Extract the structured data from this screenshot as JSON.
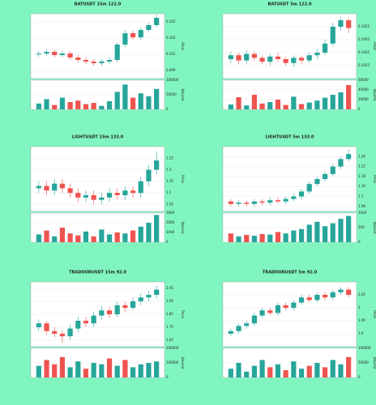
{
  "chart_data": [
    {
      "type": "candlestick",
      "title": "BATUSDT 15m 122.0",
      "ylabel": "Price",
      "vlabel": "Volume",
      "grid": true,
      "up_color": "#26a69a",
      "down_color": "#ef5350",
      "open": [
        0.101,
        0.1011,
        0.1013,
        0.1009,
        0.1011,
        0.1006,
        0.1003,
        0.1001,
        0.0999,
        0.1001,
        0.1003,
        0.1022,
        0.1036,
        0.1031,
        0.104,
        0.1046
      ],
      "close": [
        0.1011,
        0.1013,
        0.1009,
        0.1011,
        0.1006,
        0.1003,
        0.1001,
        0.0999,
        0.1001,
        0.1003,
        0.1022,
        0.1036,
        0.1031,
        0.104,
        0.1046,
        0.1055
      ],
      "high": [
        0.1014,
        0.1016,
        0.1016,
        0.1014,
        0.1014,
        0.1009,
        0.1006,
        0.1004,
        0.1004,
        0.1006,
        0.1025,
        0.104,
        0.1039,
        0.1043,
        0.1049,
        0.1059
      ],
      "low": [
        0.1007,
        0.1008,
        0.1006,
        0.1006,
        0.1003,
        0.1,
        0.0998,
        0.0996,
        0.0996,
        0.0998,
        0.1,
        0.1019,
        0.1028,
        0.1028,
        0.1037,
        0.1043
      ],
      "ylim": [
        0.098,
        0.106
      ],
      "yticks": [
        0.099,
        0.101,
        0.103,
        0.105
      ],
      "volume": [
        20000,
        35000,
        15000,
        40000,
        25000,
        30000,
        18000,
        22000,
        12000,
        28000,
        60000,
        85000,
        40000,
        55000,
        45000,
        70000
      ],
      "vlim": [
        0,
        100000
      ],
      "vticks": [
        0,
        50000,
        100000
      ]
    },
    {
      "type": "candlestick",
      "title": "BATUSDT 5m 122.0",
      "ylabel": "Price",
      "vlabel": "Volume",
      "grid": true,
      "up_color": "#26a69a",
      "down_color": "#ef5350",
      "open": [
        0.103,
        0.1033,
        0.1029,
        0.1034,
        0.1031,
        0.1028,
        0.1032,
        0.103,
        0.1027,
        0.1031,
        0.1029,
        0.1033,
        0.1035,
        0.1042,
        0.1055,
        0.106
      ],
      "close": [
        0.1033,
        0.1029,
        0.1034,
        0.1031,
        0.1028,
        0.1032,
        0.103,
        0.1027,
        0.1031,
        0.1029,
        0.1033,
        0.1035,
        0.1042,
        0.1055,
        0.106,
        0.1054
      ],
      "high": [
        0.1036,
        0.1035,
        0.1037,
        0.1036,
        0.1033,
        0.1034,
        0.1035,
        0.1032,
        0.1033,
        0.1033,
        0.1035,
        0.1038,
        0.1045,
        0.1058,
        0.1063,
        0.1062
      ],
      "low": [
        0.1027,
        0.1026,
        0.1026,
        0.1029,
        0.1026,
        0.1025,
        0.1028,
        0.1025,
        0.1024,
        0.1026,
        0.1027,
        0.103,
        0.1033,
        0.104,
        0.1052,
        0.105
      ],
      "ylim": [
        0.1015,
        0.1065
      ],
      "yticks": [
        0.1025,
        0.1035,
        0.1045,
        0.1055
      ],
      "volume": [
        10000,
        25000,
        8000,
        30000,
        12000,
        15000,
        20000,
        9000,
        26000,
        11000,
        14000,
        18000,
        24000,
        30000,
        35000,
        50000
      ],
      "vlim": [
        0,
        60000
      ],
      "vticks": [
        0,
        20000,
        40000,
        60000
      ]
    },
    {
      "type": "candlestick",
      "title": "LIGHTUSDT 15m 133.0",
      "ylabel": "Price",
      "vlabel": "Volume",
      "grid": true,
      "up_color": "#26a69a",
      "down_color": "#ef5350",
      "open": [
        1.12,
        1.13,
        1.11,
        1.14,
        1.12,
        1.1,
        1.08,
        1.09,
        1.07,
        1.08,
        1.1,
        1.09,
        1.11,
        1.1,
        1.15,
        1.2
      ],
      "close": [
        1.13,
        1.11,
        1.14,
        1.12,
        1.1,
        1.08,
        1.09,
        1.07,
        1.08,
        1.1,
        1.09,
        1.11,
        1.1,
        1.15,
        1.2,
        1.24
      ],
      "high": [
        1.15,
        1.15,
        1.16,
        1.16,
        1.14,
        1.12,
        1.11,
        1.11,
        1.1,
        1.12,
        1.12,
        1.13,
        1.13,
        1.17,
        1.22,
        1.28
      ],
      "low": [
        1.1,
        1.09,
        1.09,
        1.1,
        1.08,
        1.06,
        1.06,
        1.05,
        1.05,
        1.06,
        1.07,
        1.07,
        1.08,
        1.08,
        1.13,
        1.18
      ],
      "ylim": [
        1.02,
        1.3
      ],
      "yticks": [
        1.05,
        1.1,
        1.15,
        1.2,
        1.25
      ],
      "volume": [
        800,
        1200,
        600,
        1500,
        900,
        700,
        1100,
        600,
        1300,
        800,
        1000,
        900,
        1200,
        1600,
        2000,
        2800
      ],
      "vlim": [
        0,
        3000
      ],
      "vticks": [
        0,
        1000,
        2000,
        3000
      ]
    },
    {
      "type": "candlestick",
      "title": "LIGHTUSDT 5m 133.0",
      "ylabel": "Price",
      "vlabel": "Volume",
      "grid": true,
      "up_color": "#26a69a",
      "down_color": "#ef5350",
      "open": [
        1.08,
        1.07,
        1.075,
        1.07,
        1.08,
        1.075,
        1.085,
        1.08,
        1.09,
        1.1,
        1.12,
        1.15,
        1.17,
        1.19,
        1.22,
        1.25
      ],
      "close": [
        1.07,
        1.075,
        1.07,
        1.08,
        1.075,
        1.085,
        1.08,
        1.09,
        1.1,
        1.12,
        1.15,
        1.17,
        1.19,
        1.22,
        1.25,
        1.27
      ],
      "high": [
        1.09,
        1.085,
        1.085,
        1.09,
        1.09,
        1.095,
        1.095,
        1.1,
        1.11,
        1.13,
        1.16,
        1.18,
        1.2,
        1.23,
        1.26,
        1.29
      ],
      "low": [
        1.06,
        1.06,
        1.06,
        1.06,
        1.065,
        1.065,
        1.07,
        1.07,
        1.08,
        1.09,
        1.11,
        1.14,
        1.16,
        1.18,
        1.21,
        1.24
      ],
      "ylim": [
        1.04,
        1.3
      ],
      "yticks": [
        1.06,
        1.1,
        1.14,
        1.18,
        1.22,
        1.26
      ],
      "volume": [
        300,
        200,
        250,
        220,
        280,
        260,
        350,
        300,
        400,
        450,
        600,
        700,
        550,
        650,
        800,
        900
      ],
      "vlim": [
        0,
        1000
      ],
      "vticks": [
        0,
        500,
        1000
      ]
    },
    {
      "type": "candlestick",
      "title": "TRADOORUSDT 15m 92.0",
      "ylabel": "Price",
      "vlabel": "Volume",
      "grid": true,
      "up_color": "#26a69a",
      "down_color": "#ef5350",
      "open": [
        1.75,
        1.78,
        1.72,
        1.7,
        1.68,
        1.74,
        1.8,
        1.78,
        1.84,
        1.88,
        1.85,
        1.92,
        1.9,
        1.95,
        1.98,
        2.0
      ],
      "close": [
        1.78,
        1.72,
        1.7,
        1.68,
        1.74,
        1.8,
        1.78,
        1.84,
        1.88,
        1.85,
        1.92,
        1.9,
        1.95,
        1.98,
        2.0,
        2.04
      ],
      "high": [
        1.81,
        1.8,
        1.75,
        1.73,
        1.77,
        1.83,
        1.83,
        1.87,
        1.91,
        1.91,
        1.95,
        1.95,
        1.98,
        2.01,
        2.03,
        2.07
      ],
      "low": [
        1.72,
        1.69,
        1.67,
        1.63,
        1.65,
        1.71,
        1.75,
        1.75,
        1.81,
        1.82,
        1.83,
        1.87,
        1.88,
        1.92,
        1.95,
        1.97
      ],
      "ylim": [
        1.6,
        2.1
      ],
      "yticks": [
        1.65,
        1.75,
        1.85,
        1.95,
        2.05
      ],
      "volume": [
        80000,
        120000,
        90000,
        140000,
        70000,
        110000,
        60000,
        100000,
        90000,
        130000,
        80000,
        120000,
        70000,
        90000,
        100000,
        110000
      ],
      "vlim": [
        0,
        200000
      ],
      "vticks": [
        0,
        100000,
        200000
      ]
    },
    {
      "type": "candlestick",
      "title": "TRADOORUSDT 5m 92.0",
      "ylabel": "Price",
      "vlabel": "Volume",
      "grid": true,
      "up_color": "#26a69a",
      "down_color": "#ef5350",
      "open": [
        1.9,
        1.91,
        1.93,
        1.94,
        1.97,
        1.99,
        1.98,
        2.01,
        2.0,
        2.02,
        2.04,
        2.03,
        2.05,
        2.04,
        2.06,
        2.07
      ],
      "close": [
        1.91,
        1.93,
        1.94,
        1.97,
        1.99,
        1.98,
        2.01,
        2.0,
        2.02,
        2.04,
        2.03,
        2.05,
        2.04,
        2.06,
        2.07,
        2.05
      ],
      "high": [
        1.92,
        1.94,
        1.95,
        1.98,
        2.0,
        2.0,
        2.02,
        2.02,
        2.03,
        2.05,
        2.05,
        2.06,
        2.06,
        2.07,
        2.08,
        2.08
      ],
      "low": [
        1.89,
        1.9,
        1.92,
        1.93,
        1.96,
        1.97,
        1.97,
        1.99,
        1.99,
        2.01,
        2.02,
        2.02,
        2.03,
        2.03,
        2.05,
        2.04
      ],
      "ylim": [
        1.85,
        2.1
      ],
      "yticks": [
        1.9,
        1.95,
        2,
        2.05
      ],
      "volume": [
        30000,
        50000,
        20000,
        40000,
        60000,
        35000,
        45000,
        25000,
        55000,
        30000,
        40000,
        50000,
        35000,
        60000,
        45000,
        70000
      ],
      "vlim": [
        0,
        100000
      ],
      "vticks": [
        0,
        50000,
        100000
      ]
    }
  ]
}
